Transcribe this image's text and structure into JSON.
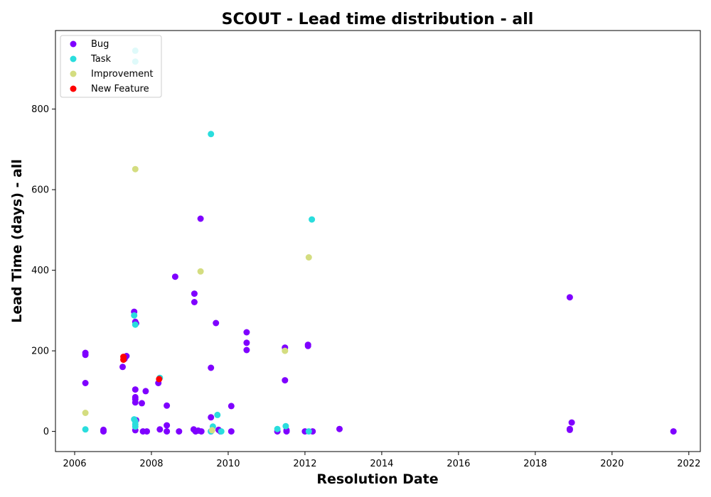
{
  "chart_data": {
    "type": "scatter",
    "title": "SCOUT - Lead time distribution - all",
    "xlabel": "Resolution Date",
    "ylabel": "Lead Time (days) - all",
    "xlim": [
      2005.5,
      2022.3
    ],
    "ylim": [
      -50,
      995
    ],
    "x_ticks": [
      "2006",
      "2008",
      "2010",
      "2012",
      "2014",
      "2016",
      "2018",
      "2020",
      "2022"
    ],
    "y_ticks": [
      "0",
      "200",
      "400",
      "600",
      "800"
    ],
    "grid": false,
    "legend_position": "top-left",
    "series": [
      {
        "name": "Bug",
        "color": "#7f00ff",
        "points": [
          [
            2006.28,
            195
          ],
          [
            2006.28,
            190
          ],
          [
            2006.28,
            120
          ],
          [
            2006.75,
            4
          ],
          [
            2006.75,
            0
          ],
          [
            2007.25,
            160
          ],
          [
            2007.3,
            180
          ],
          [
            2007.35,
            187
          ],
          [
            2007.55,
            297
          ],
          [
            2007.58,
            272
          ],
          [
            2007.6,
            268
          ],
          [
            2007.58,
            104
          ],
          [
            2007.58,
            85
          ],
          [
            2007.58,
            80
          ],
          [
            2007.58,
            72
          ],
          [
            2007.6,
            28
          ],
          [
            2007.58,
            3
          ],
          [
            2007.75,
            70
          ],
          [
            2007.85,
            100
          ],
          [
            2007.78,
            0
          ],
          [
            2007.88,
            0
          ],
          [
            2008.18,
            120
          ],
          [
            2008.22,
            5
          ],
          [
            2008.4,
            64
          ],
          [
            2008.4,
            15
          ],
          [
            2008.4,
            0
          ],
          [
            2008.72,
            0
          ],
          [
            2008.62,
            384
          ],
          [
            2009.12,
            342
          ],
          [
            2009.12,
            321
          ],
          [
            2009.1,
            5
          ],
          [
            2009.15,
            0
          ],
          [
            2009.22,
            2
          ],
          [
            2009.3,
            0
          ],
          [
            2009.28,
            528
          ],
          [
            2009.55,
            158
          ],
          [
            2009.55,
            35
          ],
          [
            2009.55,
            0
          ],
          [
            2009.68,
            269
          ],
          [
            2009.75,
            4
          ],
          [
            2009.8,
            0
          ],
          [
            2010.08,
            63
          ],
          [
            2010.08,
            0
          ],
          [
            2010.48,
            246
          ],
          [
            2010.48,
            220
          ],
          [
            2010.48,
            202
          ],
          [
            2011.28,
            0
          ],
          [
            2011.48,
            208
          ],
          [
            2011.48,
            127
          ],
          [
            2011.52,
            3
          ],
          [
            2011.52,
            0
          ],
          [
            2012.08,
            215
          ],
          [
            2012.08,
            212
          ],
          [
            2012.0,
            0
          ],
          [
            2012.2,
            0
          ],
          [
            2012.9,
            6
          ],
          [
            2018.9,
            333
          ],
          [
            2018.9,
            6
          ],
          [
            2018.9,
            4
          ],
          [
            2018.95,
            22
          ],
          [
            2021.6,
            0
          ]
        ]
      },
      {
        "name": "Task",
        "color": "#2adddd",
        "points": [
          [
            2007.58,
            945
          ],
          [
            2007.58,
            918
          ],
          [
            2006.28,
            5
          ],
          [
            2007.55,
            288
          ],
          [
            2007.58,
            265
          ],
          [
            2007.55,
            30
          ],
          [
            2007.58,
            25
          ],
          [
            2007.58,
            18
          ],
          [
            2007.58,
            12
          ],
          [
            2008.22,
            133
          ],
          [
            2009.55,
            738
          ],
          [
            2009.6,
            12
          ],
          [
            2009.55,
            0
          ],
          [
            2009.72,
            41
          ],
          [
            2009.82,
            0
          ],
          [
            2011.28,
            6
          ],
          [
            2011.5,
            13
          ],
          [
            2012.18,
            526
          ],
          [
            2012.1,
            0
          ]
        ]
      },
      {
        "name": "Improvement",
        "color": "#d4dd80",
        "points": [
          [
            2006.28,
            46
          ],
          [
            2007.58,
            651
          ],
          [
            2009.28,
            397
          ],
          [
            2009.58,
            3
          ],
          [
            2011.48,
            200
          ],
          [
            2012.1,
            432
          ]
        ]
      },
      {
        "name": "New Feature",
        "color": "#ff0000",
        "points": [
          [
            2007.27,
            185
          ],
          [
            2007.27,
            178
          ],
          [
            2008.2,
            130
          ]
        ]
      }
    ]
  }
}
